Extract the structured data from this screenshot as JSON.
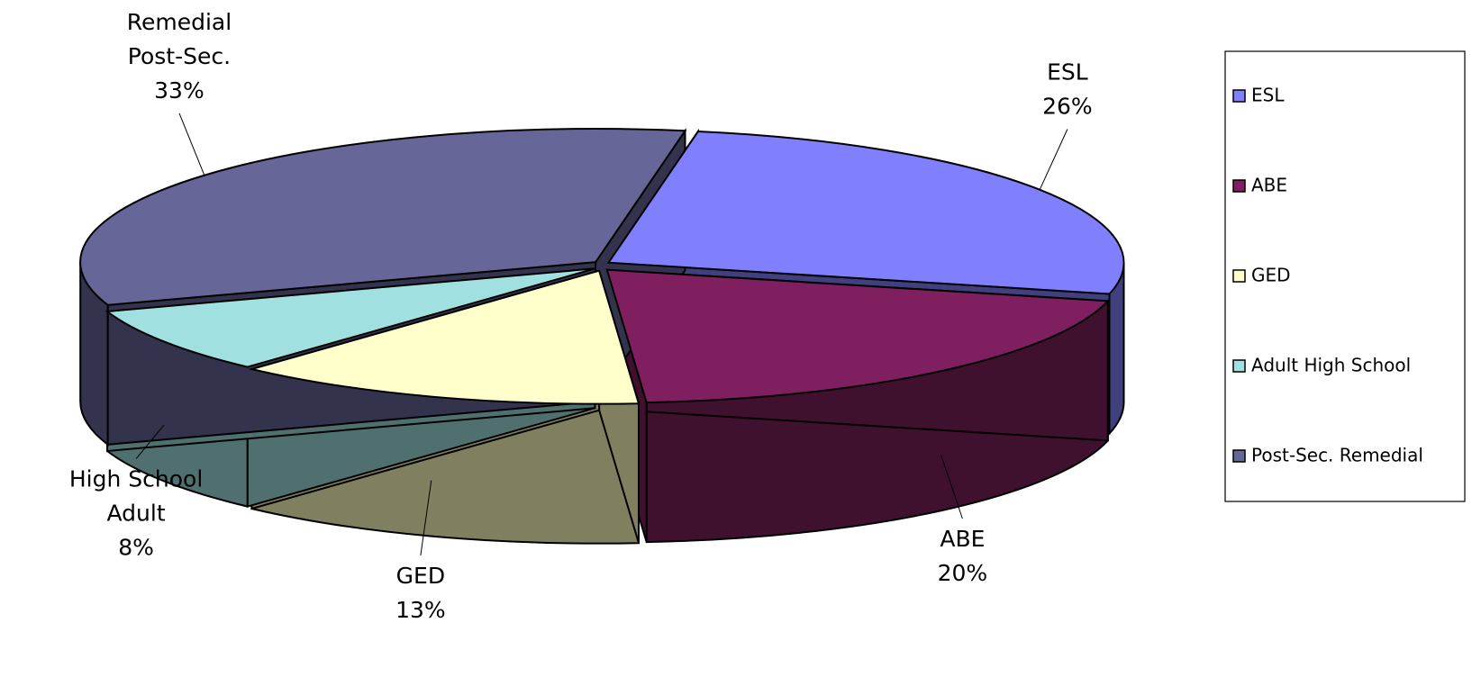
{
  "chart_data": {
    "type": "pie3d",
    "categories": [
      "ESL",
      "ABE",
      "GED",
      "Adult High School",
      "Post-Sec. Remedial"
    ],
    "values": [
      26,
      20,
      13,
      8,
      33
    ],
    "value_labels": [
      "26%",
      "20%",
      "13%",
      "8%",
      "33%"
    ],
    "data_labels": [
      [
        "ESL"
      ],
      [
        "ABE"
      ],
      [
        "GED"
      ],
      [
        "High School",
        "Adult"
      ],
      [
        "Remedial",
        "Post-Sec."
      ]
    ],
    "colors": [
      "#8080ff",
      "#7f1f5f",
      "#ffffcc",
      "#a0e0e0",
      "#666699"
    ],
    "side_colors": [
      "#40407f",
      "#40102f",
      "#808060",
      "#507070",
      "#33334d"
    ],
    "legend": "right"
  }
}
